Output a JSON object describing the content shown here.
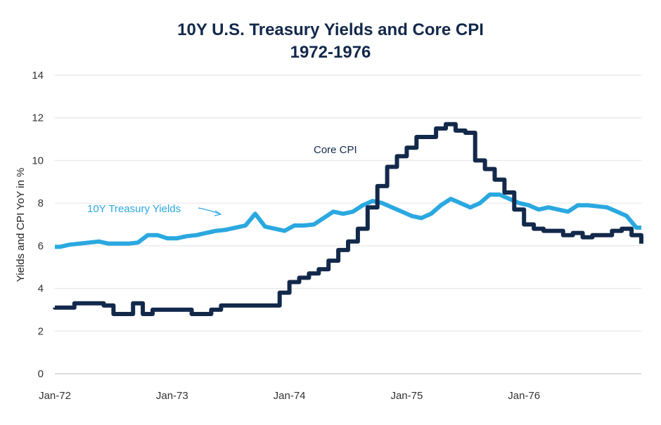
{
  "chart_data": {
    "type": "line",
    "title": "10Y U.S. Treasury Yields and Core CPI",
    "subtitle": "1972-1976",
    "ylabel": "Yields and CPI YoY in %",
    "xlabel": "",
    "ylim": [
      0,
      14
    ],
    "yticks": [
      0,
      2,
      4,
      6,
      8,
      10,
      12,
      14
    ],
    "xlim": [
      "1972-01",
      "1977-01"
    ],
    "xtick_labels": [
      "Jan-72",
      "Jan-73",
      "Jan-74",
      "Jan-75",
      "Jan-76"
    ],
    "grid": true,
    "colors": {
      "core_cpi": "#13294b",
      "treasury": "#2aa8e0",
      "grid": "#e3e3e3"
    },
    "x_start": "1972-01",
    "frequency": "monthly",
    "series": [
      {
        "name": "Core CPI",
        "style": "step",
        "values": [
          3.1,
          3.1,
          3.3,
          3.3,
          3.3,
          3.2,
          2.8,
          2.8,
          3.3,
          2.8,
          3.0,
          3.0,
          3.0,
          3.0,
          2.8,
          2.8,
          3.0,
          3.2,
          3.2,
          3.2,
          3.2,
          3.2,
          3.2,
          3.8,
          4.3,
          4.5,
          4.7,
          4.9,
          5.3,
          5.8,
          6.2,
          6.8,
          7.8,
          8.8,
          9.7,
          10.2,
          10.6,
          11.1,
          11.1,
          11.5,
          11.7,
          11.4,
          11.3,
          10.0,
          9.6,
          9.1,
          8.5,
          7.7,
          7.0,
          6.8,
          6.7,
          6.7,
          6.5,
          6.6,
          6.4,
          6.5,
          6.5,
          6.7,
          6.8,
          6.5
        ]
      },
      {
        "name": "10Y Treasury Yields",
        "style": "line",
        "values": [
          5.95,
          6.05,
          6.1,
          6.15,
          6.2,
          6.1,
          6.1,
          6.1,
          6.15,
          6.5,
          6.5,
          6.35,
          6.35,
          6.45,
          6.5,
          6.6,
          6.7,
          6.75,
          6.85,
          6.95,
          7.5,
          6.9,
          6.8,
          6.7,
          6.95,
          6.95,
          7.0,
          7.3,
          7.6,
          7.5,
          7.6,
          7.9,
          8.1,
          8.0,
          7.8,
          7.6,
          7.4,
          7.3,
          7.5,
          7.9,
          8.2,
          8.0,
          7.8,
          8.0,
          8.4,
          8.4,
          8.2,
          8.0,
          7.9,
          7.7,
          7.8,
          7.7,
          7.6,
          7.9,
          7.9,
          7.85,
          7.8,
          7.6,
          7.4,
          6.85
        ]
      }
    ],
    "annotations": [
      {
        "text": "Core CPI",
        "series": "Core CPI"
      },
      {
        "text": "10Y Treasury Yields",
        "series": "10Y Treasury Yields",
        "arrow": true
      }
    ]
  }
}
